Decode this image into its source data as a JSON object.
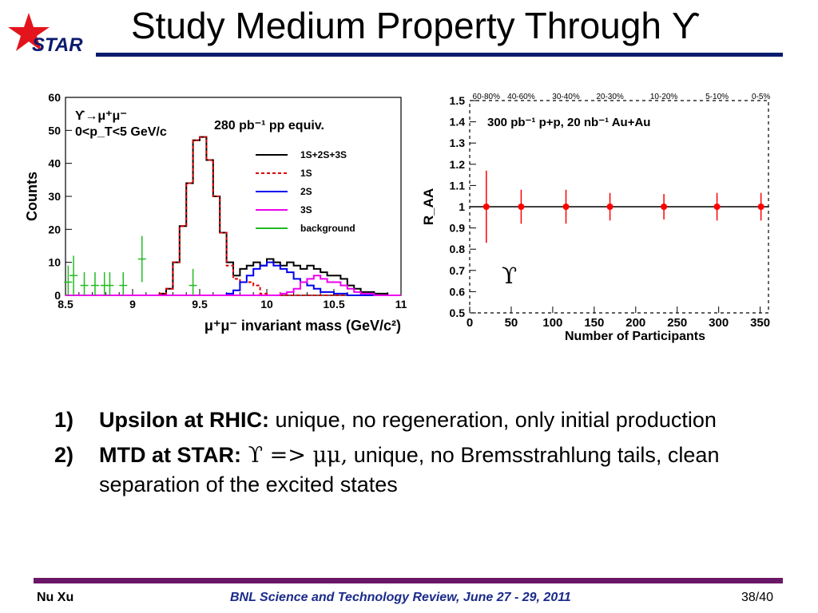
{
  "logo": {
    "text": "STAR"
  },
  "title": "Study Medium Property Through ϒ",
  "chart_data": [
    {
      "type": "line",
      "ylabel": "Counts",
      "xlabel": "μ⁺μ⁻ invariant mass (GeV/c²)",
      "xlim": [
        8.5,
        11
      ],
      "ylim": [
        0,
        60
      ],
      "x_ticks": [
        "8.5",
        "9",
        "9.5",
        "10",
        "10.5",
        "11"
      ],
      "y_ticks": [
        "0",
        "10",
        "20",
        "30",
        "40",
        "50",
        "60"
      ],
      "annotations": [
        "ϒ→μ⁺μ⁻",
        "0<p_T<5 GeV/c",
        "280 pb⁻¹ pp equiv."
      ],
      "legend_position": "right",
      "series": [
        {
          "name": "1S+2S+3S",
          "color": "#000000",
          "x": [
            8.5,
            8.6,
            8.7,
            8.8,
            8.9,
            9.0,
            9.1,
            9.2,
            9.25,
            9.3,
            9.35,
            9.4,
            9.45,
            9.5,
            9.55,
            9.6,
            9.65,
            9.7,
            9.75,
            9.8,
            9.85,
            9.9,
            9.95,
            10.0,
            10.05,
            10.1,
            10.15,
            10.2,
            10.25,
            10.3,
            10.35,
            10.4,
            10.45,
            10.5,
            10.55,
            10.6,
            10.65,
            10.7,
            10.8,
            10.9,
            11.0
          ],
          "y": [
            0,
            0,
            0,
            0,
            0,
            0,
            0,
            0.5,
            2,
            10,
            21,
            34,
            47,
            48,
            41,
            30,
            19,
            10,
            6,
            8,
            9,
            10,
            9,
            11,
            10,
            9,
            10,
            9,
            8,
            9,
            8,
            7,
            6,
            6,
            5,
            3,
            2,
            1,
            0.5,
            0,
            0
          ]
        },
        {
          "name": "1S",
          "color": "#dd0000",
          "x": [
            8.5,
            8.6,
            8.7,
            8.8,
            8.9,
            9.0,
            9.1,
            9.2,
            9.25,
            9.3,
            9.35,
            9.4,
            9.45,
            9.5,
            9.55,
            9.6,
            9.65,
            9.7,
            9.75,
            9.8,
            9.85,
            9.9,
            9.95,
            10.0,
            10.1,
            10.2,
            10.4,
            10.6,
            11.0
          ],
          "y": [
            0,
            0,
            0,
            0,
            0,
            0,
            0,
            0.5,
            2,
            10,
            21,
            34,
            47,
            48,
            41,
            30,
            19,
            9,
            5,
            4,
            4,
            3,
            0.5,
            0,
            0,
            0,
            0,
            0,
            0
          ]
        },
        {
          "name": "2S",
          "color": "#0000ee",
          "x": [
            8.5,
            9.0,
            9.5,
            9.7,
            9.75,
            9.8,
            9.85,
            9.9,
            9.95,
            10.0,
            10.05,
            10.1,
            10.15,
            10.2,
            10.25,
            10.3,
            10.35,
            10.4,
            10.5,
            10.6,
            10.8,
            11.0
          ],
          "y": [
            0,
            0,
            0,
            0.5,
            1.5,
            4,
            6,
            8,
            9,
            10,
            9,
            8,
            7,
            5,
            4,
            3,
            2,
            1,
            0.5,
            0,
            0,
            0
          ]
        },
        {
          "name": "3S",
          "color": "#ee00ee",
          "x": [
            8.5,
            9.0,
            9.5,
            9.9,
            10.0,
            10.1,
            10.15,
            10.2,
            10.25,
            10.3,
            10.35,
            10.4,
            10.45,
            10.5,
            10.55,
            10.6,
            10.65,
            10.7,
            10.8,
            10.9,
            11.0
          ],
          "y": [
            0,
            0,
            0,
            0,
            0,
            0.5,
            1,
            2,
            4,
            5,
            6,
            5,
            4,
            4,
            3,
            2,
            1,
            0.5,
            0,
            0,
            0
          ]
        },
        {
          "name": "background",
          "color": "#22bb22",
          "x": [
            8.52,
            8.56,
            8.64,
            8.72,
            8.79,
            8.83,
            8.93,
            9.07,
            9.45
          ],
          "y": [
            4,
            6,
            3,
            3,
            3,
            3,
            3,
            11,
            3
          ],
          "err": [
            5,
            6,
            4,
            4,
            4,
            4,
            4,
            7,
            5
          ]
        }
      ]
    },
    {
      "type": "scatter",
      "ylabel": "R_AA",
      "xlabel": "Number of Participants",
      "xlim": [
        0,
        360
      ],
      "ylim": [
        0.5,
        1.5
      ],
      "x_ticks": [
        "0",
        "50",
        "100",
        "150",
        "200",
        "250",
        "300",
        "350"
      ],
      "y_ticks": [
        "0.5",
        "0.6",
        "0.7",
        "0.8",
        "0.9",
        "1",
        "1.1",
        "1.2",
        "1.3",
        "1.4",
        "1.5"
      ],
      "annotations": [
        "300 pb⁻¹ p+p, 20 nb⁻¹ Au+Au",
        "ϒ"
      ],
      "centrality_labels": [
        "60-80%",
        "40-60%",
        "30-40%",
        "20-30%",
        "10-20%",
        "5-10%",
        "0-5%"
      ],
      "centrality_npart": [
        20,
        62,
        116,
        169,
        234,
        298,
        351
      ],
      "reference_line": 1,
      "series": [
        {
          "color": "#ff0000",
          "x": [
            20,
            62,
            116,
            169,
            234,
            298,
            351
          ],
          "y": [
            1,
            1,
            1,
            1,
            1,
            1,
            1
          ],
          "err": [
            0.17,
            0.08,
            0.08,
            0.065,
            0.06,
            0.065,
            0.065
          ]
        }
      ]
    }
  ],
  "bullets": [
    {
      "num": "1)",
      "bold": "Upsilon at RHIC:",
      "pre": "",
      "text": " unique, no regeneration, only initial production"
    },
    {
      "num": "2)",
      "bold": "MTD at STAR:",
      "pre": " ϒ => μμ,",
      "text": " unique, no Bremsstrahlung tails, clean separation of the excited states"
    }
  ],
  "footer": {
    "author": "Nu Xu",
    "event": "BNL Science and Technology Review, June 27 - 29, 2011",
    "page": "38/40"
  }
}
